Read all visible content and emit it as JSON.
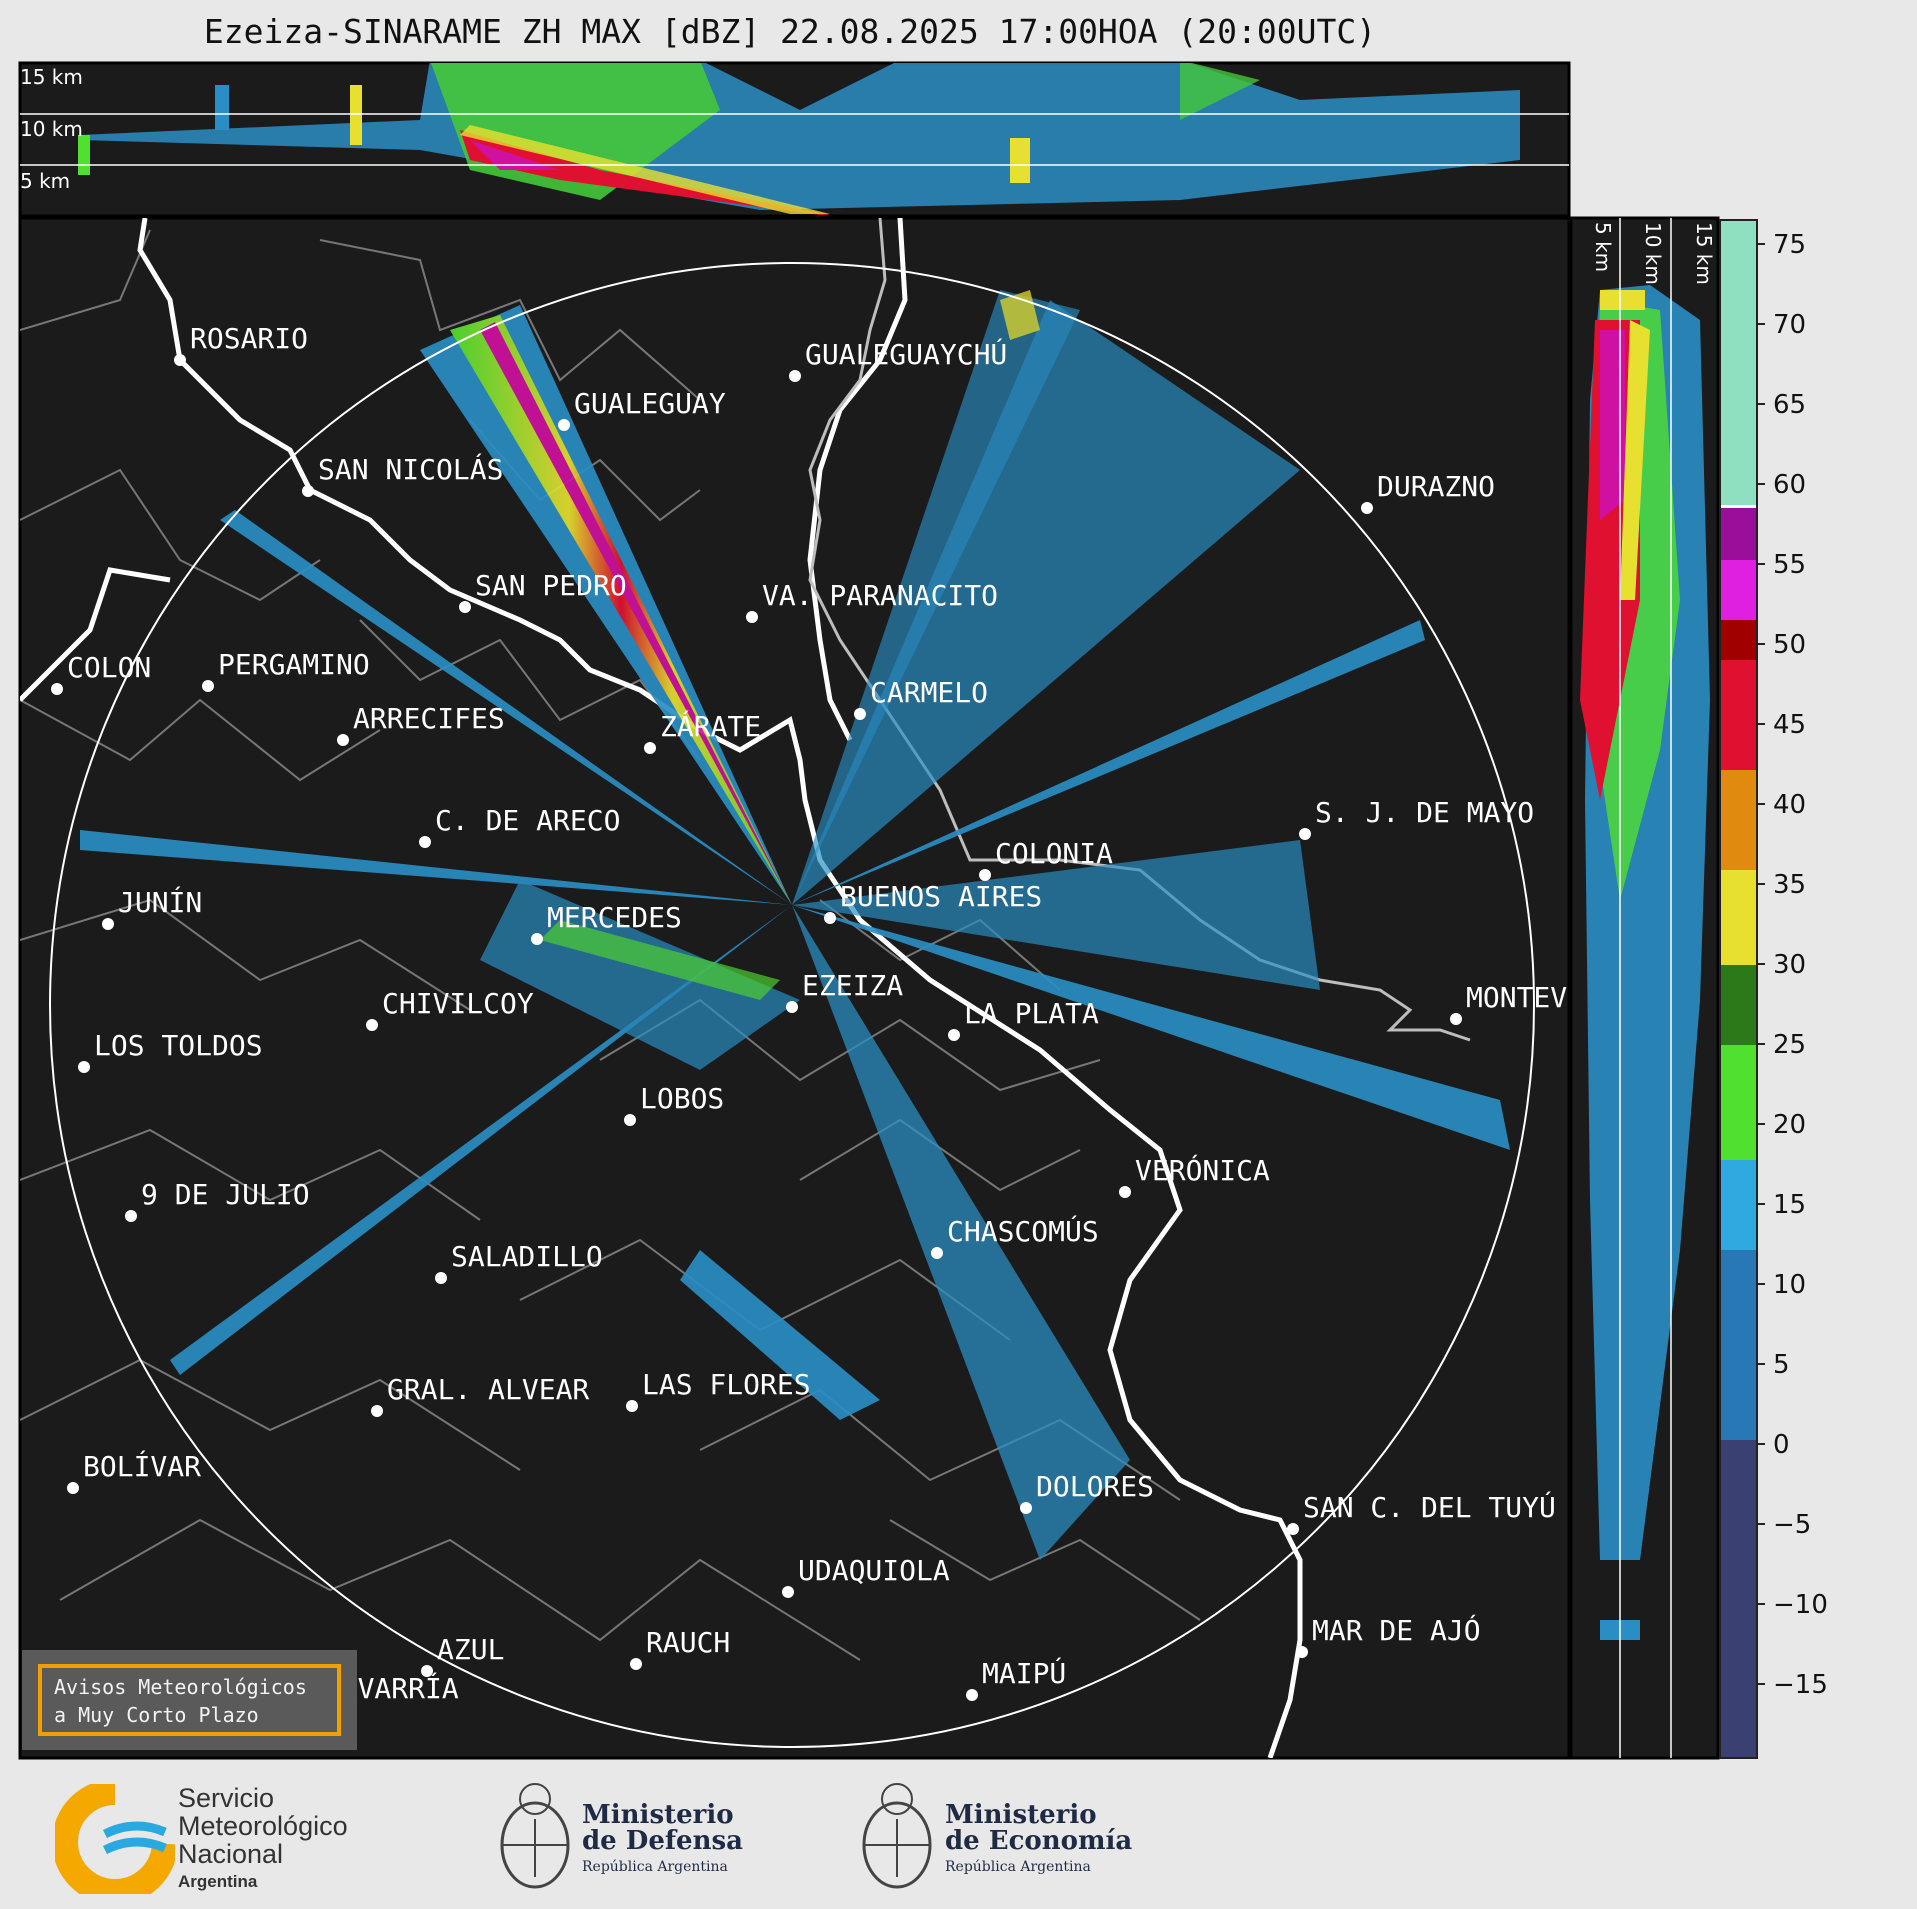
{
  "title": "Ezeiza-SINARAME ZH MAX [dBZ] 22.08.2025 17:00HOA (20:00UTC)",
  "height_labels_top": [
    "15 km",
    "10 km",
    "5 km"
  ],
  "height_labels_side": [
    "5 km",
    "10 km",
    "15 km"
  ],
  "colorbar": {
    "ticks": [
      "75",
      "70",
      "65",
      "60",
      "55",
      "50",
      "45",
      "40",
      "35",
      "30",
      "25",
      "20",
      "15",
      "10",
      "5",
      "0",
      "−5",
      "−10",
      "−15"
    ],
    "colors": {
      "high": "#8ee0c0",
      "white": "#ffffff",
      "purple": "#9a0f9a",
      "magenta": "#e020e0",
      "dark_red": "#a00000",
      "red": "#e01030",
      "orange": "#e08a10",
      "yellow": "#e8e030",
      "dark_green": "#2a7a1a",
      "green": "#50e030",
      "light_blue": "#30a8e0",
      "blue": "#2878b8",
      "dark_blue": "#3a4070"
    }
  },
  "cities": [
    {
      "name": "ROSARIO"
    },
    {
      "name": "GUALEGUAYCHÚ"
    },
    {
      "name": "GUALEGUAY"
    },
    {
      "name": "SAN NICOLÁS"
    },
    {
      "name": "DURAZNO"
    },
    {
      "name": "SAN PEDRO"
    },
    {
      "name": "VA. PARANACITO"
    },
    {
      "name": "COLON"
    },
    {
      "name": "PERGAMINO"
    },
    {
      "name": "CARMELO"
    },
    {
      "name": "ARRECIFES"
    },
    {
      "name": "ZÁRATE"
    },
    {
      "name": "C. DE ARECO"
    },
    {
      "name": "S. J. DE MAYO"
    },
    {
      "name": "COLONIA"
    },
    {
      "name": "JUNÍN"
    },
    {
      "name": "BUENOS AIRES"
    },
    {
      "name": "MERCEDES"
    },
    {
      "name": "EZEIZA"
    },
    {
      "name": "MONTEV"
    },
    {
      "name": "CHIVILCOY"
    },
    {
      "name": "LA PLATA"
    },
    {
      "name": "LOS TOLDOS"
    },
    {
      "name": "LOBOS"
    },
    {
      "name": "VERÓNICA"
    },
    {
      "name": "9 DE JULIO"
    },
    {
      "name": "CHASCOMÚS"
    },
    {
      "name": "SALADILLO"
    },
    {
      "name": "GRAL. ALVEAR"
    },
    {
      "name": "LAS FLORES"
    },
    {
      "name": "BOLÍVAR"
    },
    {
      "name": "DOLORES"
    },
    {
      "name": "SAN C. DEL TUYÚ"
    },
    {
      "name": "UDAQUIOLA"
    },
    {
      "name": "MAR DE AJÓ"
    },
    {
      "name": "RAUCH"
    },
    {
      "name": "AZUL"
    },
    {
      "name": "OLAVARRÍA"
    },
    {
      "name": "MAIPÚ"
    }
  ],
  "warning_box": {
    "line1": "Avisos Meteorológicos",
    "line2": "a Muy Corto Plazo"
  },
  "logos": {
    "smn": {
      "line1": "Servicio",
      "line2": "Meteorológico",
      "line3": "Nacional",
      "line4": "Argentina"
    },
    "defensa": {
      "line1": "Ministerio",
      "line2": "de Defensa",
      "line3": "República Argentina"
    },
    "economia": {
      "line1": "Ministerio",
      "line2": "de Economía",
      "line3": "República Argentina"
    }
  }
}
